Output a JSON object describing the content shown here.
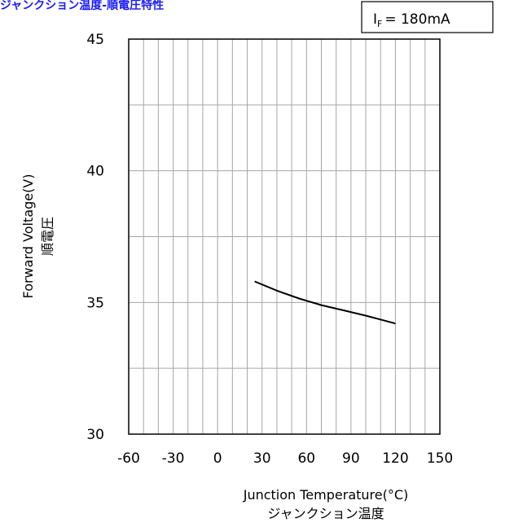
{
  "chart_data": {
    "type": "line",
    "title": "ジャンクション温度-順電圧特性",
    "title_color": "#1a1aff",
    "condition": {
      "symbol": "I",
      "subscript": "F",
      "value": "= 180mA"
    },
    "xlabel": "Junction Temperature(°C)",
    "xlabel_jp": "ジャンクション温度",
    "ylabel": "Forward Voltage(V)",
    "ylabel_jp": "順電圧",
    "xlim": [
      -60,
      150
    ],
    "ylim": [
      30,
      45
    ],
    "x_ticks": [
      -60,
      -30,
      0,
      30,
      60,
      90,
      120,
      150
    ],
    "y_ticks": [
      30,
      35,
      40,
      45
    ],
    "grid": true,
    "series": [
      {
        "x": [
          25,
          40,
          55,
          70,
          85,
          100,
          110,
          120
        ],
        "y": [
          35.8,
          35.45,
          35.15,
          34.9,
          34.7,
          34.5,
          34.35,
          34.2
        ]
      }
    ]
  }
}
